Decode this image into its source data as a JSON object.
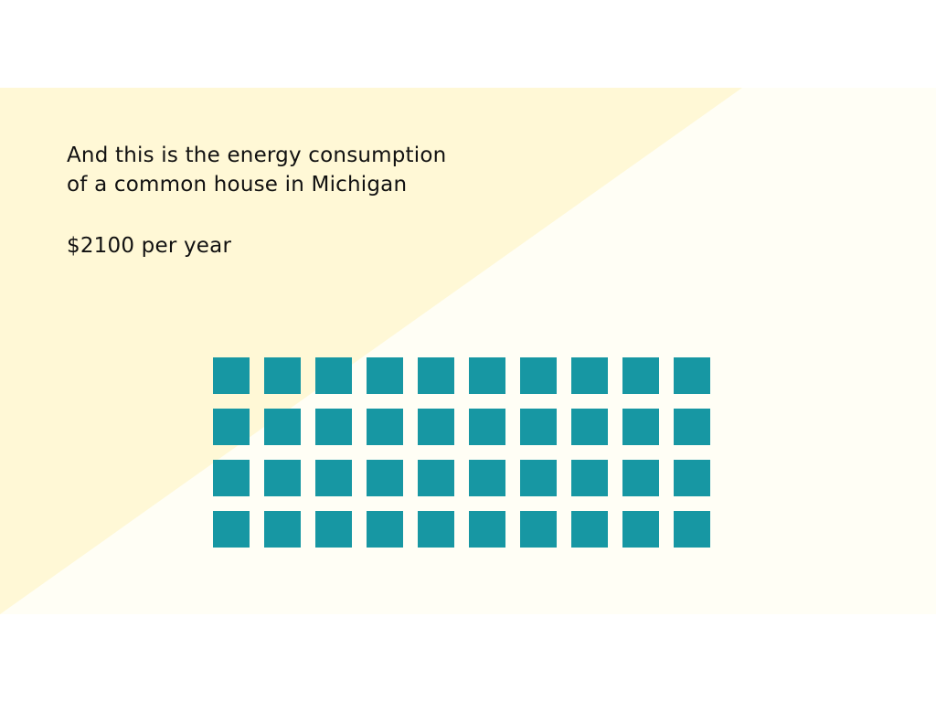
{
  "slide": {
    "caption_line_1": "And this is the energy consumption",
    "caption_line_2": "of a common house in Michigan",
    "price_text": "$2100 per year"
  },
  "colors": {
    "page_background": "#ffffff",
    "panel_light": "#fffef5",
    "panel_yellow": "#fff8d6",
    "unit_teal": "#1797a3"
  },
  "unit_grid": {
    "count": 40,
    "columns": 10,
    "rows": 4
  }
}
